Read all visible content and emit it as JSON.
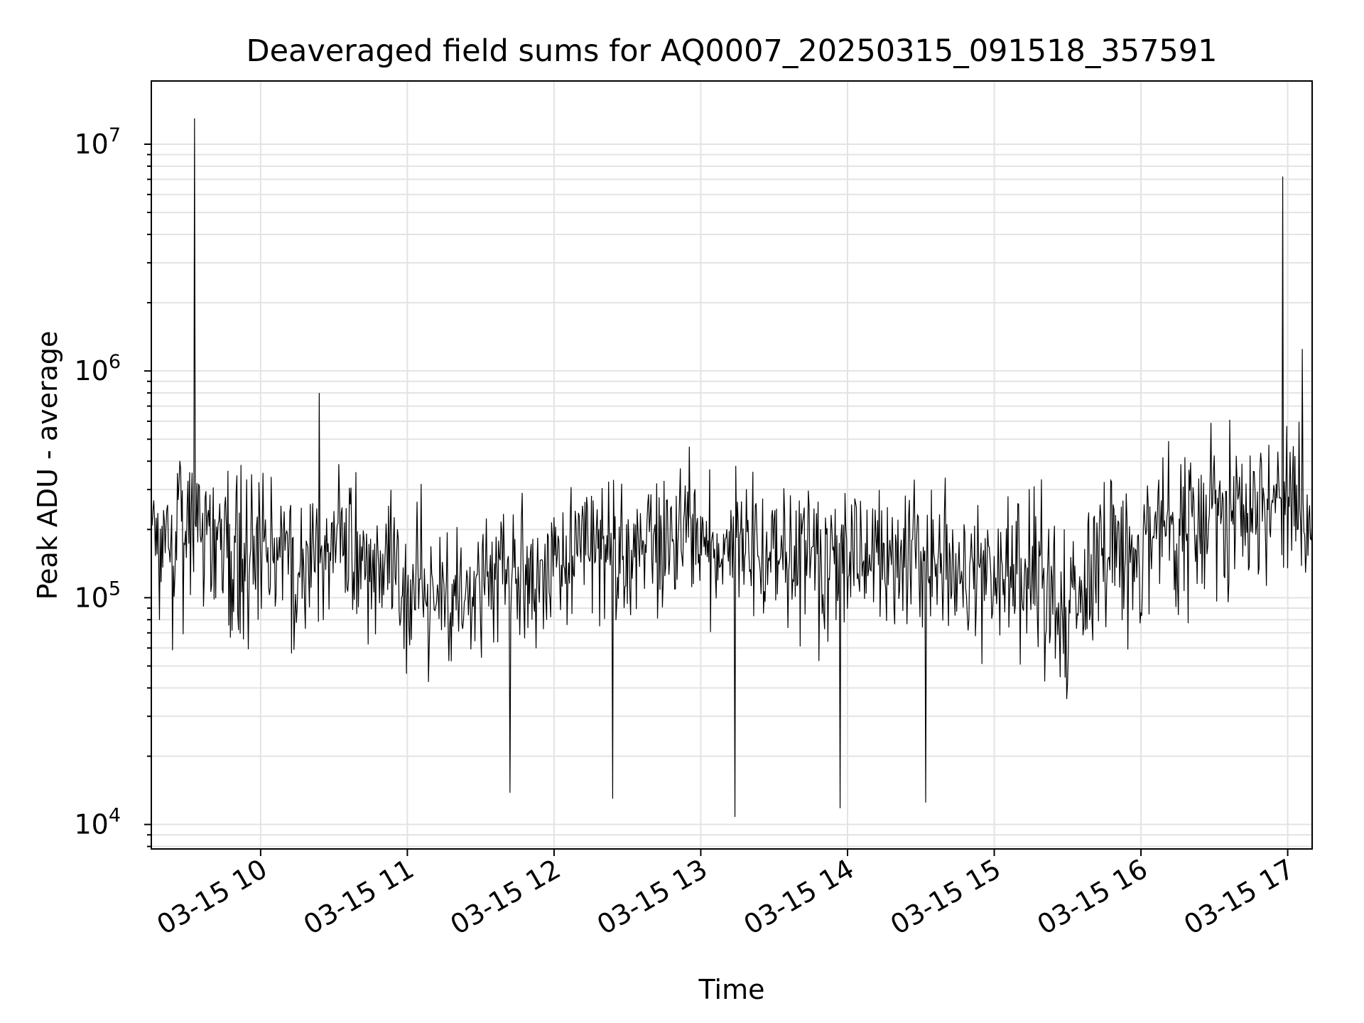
{
  "chart_data": {
    "type": "line",
    "title": "Deaveraged field sums for AQ0007_20250315_091518_357591",
    "xlabel": "Time",
    "ylabel": "Peak ADU - average",
    "y_scale": "log",
    "ylim": [
      7800,
      19000000
    ],
    "xlim": [
      "2025-03-15 09:15:18",
      "2025-03-15 17:10:00"
    ],
    "grid": true,
    "line_color": "#000000",
    "grid_color": "#e3e3e3",
    "x_ticks": [
      {
        "label": "03-15 10",
        "time": "2025-03-15 10:00"
      },
      {
        "label": "03-15 11",
        "time": "2025-03-15 11:00"
      },
      {
        "label": "03-15 12",
        "time": "2025-03-15 12:00"
      },
      {
        "label": "03-15 13",
        "time": "2025-03-15 13:00"
      },
      {
        "label": "03-15 14",
        "time": "2025-03-15 14:00"
      },
      {
        "label": "03-15 15",
        "time": "2025-03-15 15:00"
      },
      {
        "label": "03-15 16",
        "time": "2025-03-15 16:00"
      },
      {
        "label": "03-15 17",
        "time": "2025-03-15 17:00"
      }
    ],
    "y_ticks": [
      {
        "base": "10",
        "exp": "4",
        "value": 10000
      },
      {
        "base": "10",
        "exp": "5",
        "value": 100000
      },
      {
        "base": "10",
        "exp": "6",
        "value": 1000000
      },
      {
        "base": "10",
        "exp": "7",
        "value": 10000000
      }
    ],
    "series": [
      {
        "description": "dense noisy time series, ~1 sample per 20 s; trend and envelope estimated from plot",
        "x": [
          "09:15",
          "09:30",
          "09:45",
          "10:00",
          "10:15",
          "10:30",
          "10:45",
          "11:00",
          "11:15",
          "11:30",
          "11:45",
          "12:00",
          "12:15",
          "12:30",
          "12:45",
          "13:00",
          "13:15",
          "13:30",
          "13:45",
          "14:00",
          "14:15",
          "14:30",
          "14:45",
          "15:00",
          "15:15",
          "15:30",
          "15:45",
          "16:00",
          "16:15",
          "16:30",
          "16:45",
          "17:00",
          "17:10"
        ],
        "y": [
          190000,
          180000,
          160000,
          150000,
          140000,
          160000,
          150000,
          110000,
          100000,
          120000,
          130000,
          150000,
          160000,
          160000,
          170000,
          170000,
          180000,
          170000,
          150000,
          160000,
          150000,
          140000,
          140000,
          130000,
          120000,
          80000,
          160000,
          170000,
          210000,
          240000,
          250000,
          280000,
          260000
        ],
        "spikes": [
          {
            "time": "09:33",
            "value": 13000000
          },
          {
            "time": "10:24",
            "value": 800000
          },
          {
            "time": "16:58",
            "value": 7200000
          },
          {
            "time": "17:06",
            "value": 1250000
          }
        ],
        "dips": [
          {
            "time": "13:14",
            "value": 10800
          },
          {
            "time": "13:57",
            "value": 11800
          },
          {
            "time": "14:32",
            "value": 12500
          },
          {
            "time": "12:24",
            "value": 13000
          },
          {
            "time": "11:42",
            "value": 13800
          }
        ]
      }
    ]
  }
}
